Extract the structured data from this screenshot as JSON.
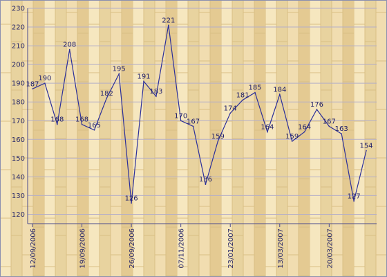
{
  "chart_data": {
    "type": "line",
    "title": "",
    "xlabel": "",
    "ylabel": "",
    "ylim": [
      115,
      230
    ],
    "yticks": [
      120,
      130,
      140,
      150,
      160,
      170,
      180,
      190,
      200,
      210,
      220,
      230
    ],
    "x_tick_labels": [
      "12/09/2006",
      "19/09/2006",
      "26/09/2006",
      "07/11/2006",
      "23/01/2007",
      "13/03/2007",
      "20/03/2007"
    ],
    "x_tick_points": [
      0,
      4,
      8,
      12,
      16,
      20,
      24
    ],
    "values": [
      187,
      190,
      168,
      208,
      168,
      165,
      182,
      195,
      126,
      191,
      183,
      221,
      170,
      167,
      136,
      159,
      174,
      181,
      185,
      164,
      184,
      159,
      164,
      176,
      167,
      163,
      127,
      154
    ],
    "grid": true,
    "legend": "none",
    "colors": {
      "background": "#f3e6c0",
      "wood_light": "#efdcaa",
      "wood_dark": "#d9bf84",
      "grid": "#b4aec8",
      "line": "#2b2f9a",
      "axis": "#4b4b8c",
      "label": "#1e1e6a",
      "frame": "#8a8fb0"
    }
  }
}
